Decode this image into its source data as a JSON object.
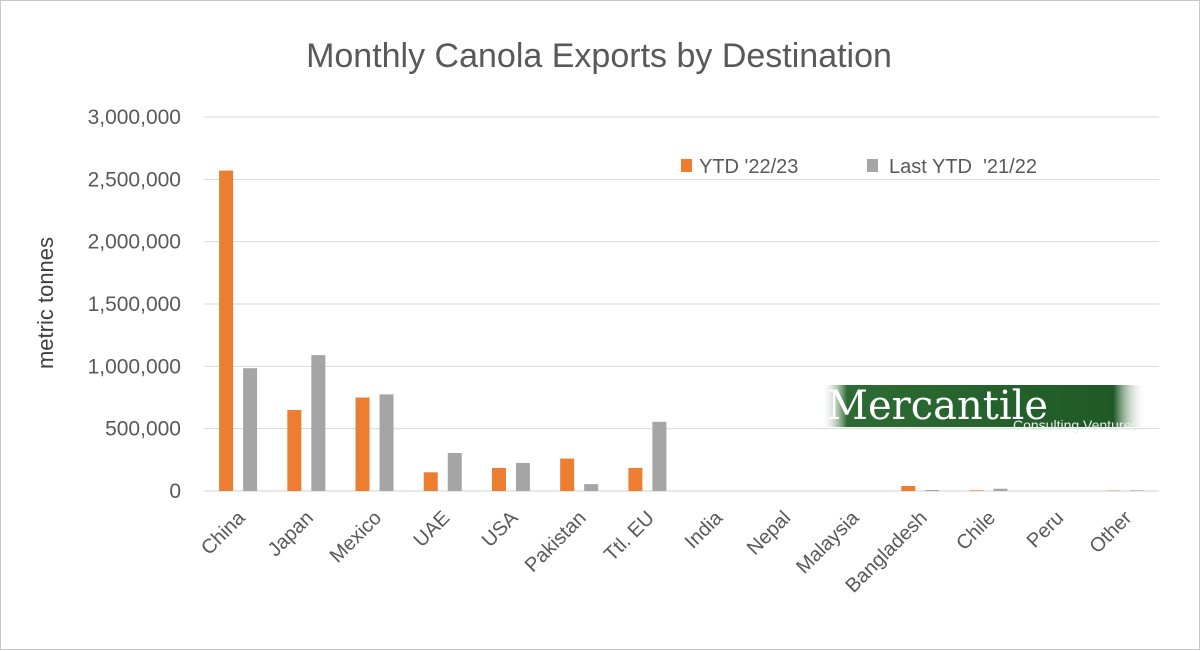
{
  "chart_data": {
    "type": "bar",
    "title": "Monthly Canola Exports by Destination",
    "xlabel": "",
    "ylabel": "metric tonnes",
    "ylim": [
      0,
      3000000
    ],
    "yticks": [
      "0",
      "500,000",
      "1,000,000",
      "1,500,000",
      "2,000,000",
      "2,500,000",
      "3,000,000"
    ],
    "grid": true,
    "legend_position": "top-right",
    "categories": [
      "China",
      "Japan",
      "Mexico",
      "UAE",
      "USA",
      "Pakistan",
      "Ttl. EU",
      "India",
      "Nepal",
      "Malaysia",
      "Bangladesh",
      "Chile",
      "Peru",
      "Other"
    ],
    "series": [
      {
        "name": "YTD '22/23",
        "color": "#ed7d31",
        "values": [
          2570000,
          650000,
          750000,
          150000,
          185000,
          260000,
          185000,
          0,
          0,
          0,
          40000,
          5000,
          0,
          3000
        ]
      },
      {
        "name": "Last YTD  '21/22",
        "color": "#a5a5a5",
        "values": [
          985000,
          1090000,
          775000,
          305000,
          225000,
          55000,
          555000,
          0,
          0,
          0,
          8000,
          18000,
          0,
          5000
        ]
      }
    ]
  },
  "watermark": {
    "main": "Mercantile",
    "sub": "Consulting Ventures"
  }
}
